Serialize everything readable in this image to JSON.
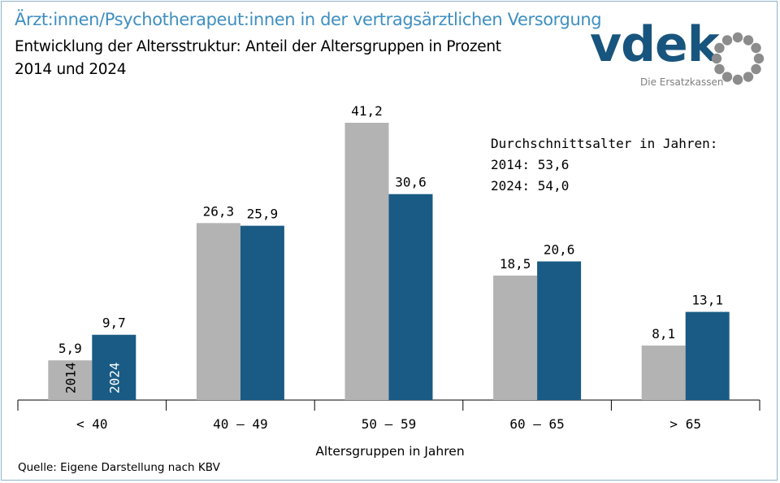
{
  "header": {
    "title": "Ärzt:innen/Psychotherapeut:innen in der vertragsärztlichen Versorgung",
    "subtitle_line1": "Entwicklung der Altersstruktur:  Anteil der Altersgruppen in Prozent",
    "subtitle_line2": "2014 und 2024"
  },
  "logo": {
    "wordmark": "vdek",
    "tagline": "Die Ersatzkassen"
  },
  "annotation": {
    "heading": "Durchschnittsalter in Jahren:",
    "line_2014": "2014:  53,6",
    "line_2024": "2024:  54,0"
  },
  "source": "Quelle: Eigene Darstellung nach KBV",
  "colors": {
    "title": "#3f8fc0",
    "series_2014": "#b3b3b3",
    "series_2024": "#195b84",
    "logo_blue": "#18557e",
    "logo_grey": "#8c8c8c",
    "frame": "#8fb4cc"
  },
  "chart_data": {
    "type": "bar",
    "categories": [
      "< 40",
      "40 – 49",
      "50 – 59",
      "60 – 65",
      "> 65"
    ],
    "series": [
      {
        "name": "2014",
        "values": [
          5.9,
          26.3,
          41.2,
          18.5,
          8.1
        ],
        "labels": [
          "5,9",
          "26,3",
          "41,2",
          "18,5",
          "8,1"
        ]
      },
      {
        "name": "2024",
        "values": [
          9.7,
          25.9,
          30.6,
          20.6,
          13.1
        ],
        "labels": [
          "9,7",
          "25,9",
          "30,6",
          "20,6",
          "13,1"
        ]
      }
    ],
    "title": "",
    "xlabel": "Altersgruppen in Jahren",
    "ylabel": "",
    "ylim": [
      0,
      41.2
    ],
    "grid": false,
    "legend": "inside first category bars"
  }
}
